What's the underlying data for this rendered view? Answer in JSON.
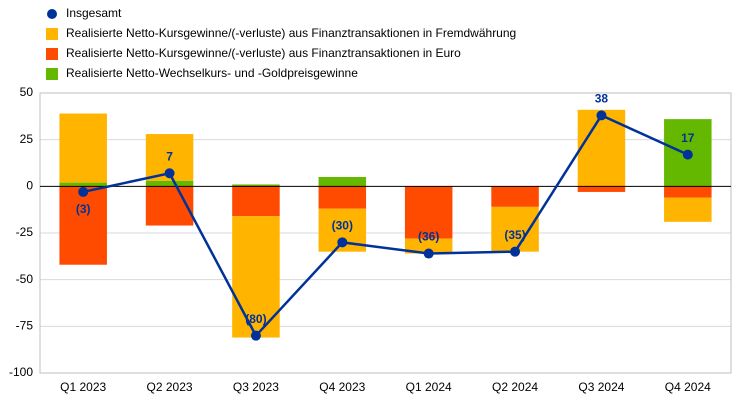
{
  "chart_data": {
    "type": "stacked_bar_line",
    "categories": [
      "Q1 2023",
      "Q2 2023",
      "Q3 2023",
      "Q4 2023",
      "Q1 2024",
      "Q2 2024",
      "Q3 2024",
      "Q4 2024"
    ],
    "series": [
      {
        "name": "Insgesamt",
        "type": "line",
        "color": "#003299",
        "values": [
          -3,
          7,
          -80,
          -30,
          -36,
          -35,
          38,
          17
        ],
        "value_labels": [
          "(3)",
          "7",
          "(80)",
          "(30)",
          "(36)",
          "(35)",
          "38",
          "17"
        ]
      },
      {
        "name": "Realisierte Netto-Kursgewinne/(-verluste) aus Finanztransaktionen in Fremdwährung",
        "type": "bar",
        "color": "#FFB400",
        "values": [
          37,
          25,
          -65,
          -23,
          -8,
          -24,
          41,
          -13
        ]
      },
      {
        "name": "Realisierte Netto-Kursgewinne/(-verluste) aus Finanztransaktionen in Euro",
        "type": "bar",
        "color": "#FF4B00",
        "values": [
          -42,
          -21,
          -16,
          -12,
          -28,
          -11,
          -3,
          -6
        ]
      },
      {
        "name": "Realisierte Netto-Wechselkurs- und -Goldpreisgewinne",
        "type": "bar",
        "color": "#65B800",
        "values": [
          2,
          3,
          1,
          5,
          0,
          0,
          0,
          36
        ]
      }
    ],
    "ylim": [
      -100,
      50
    ],
    "yticks": [
      -100,
      -75,
      -50,
      -25,
      0,
      25,
      50
    ],
    "grid": true
  }
}
